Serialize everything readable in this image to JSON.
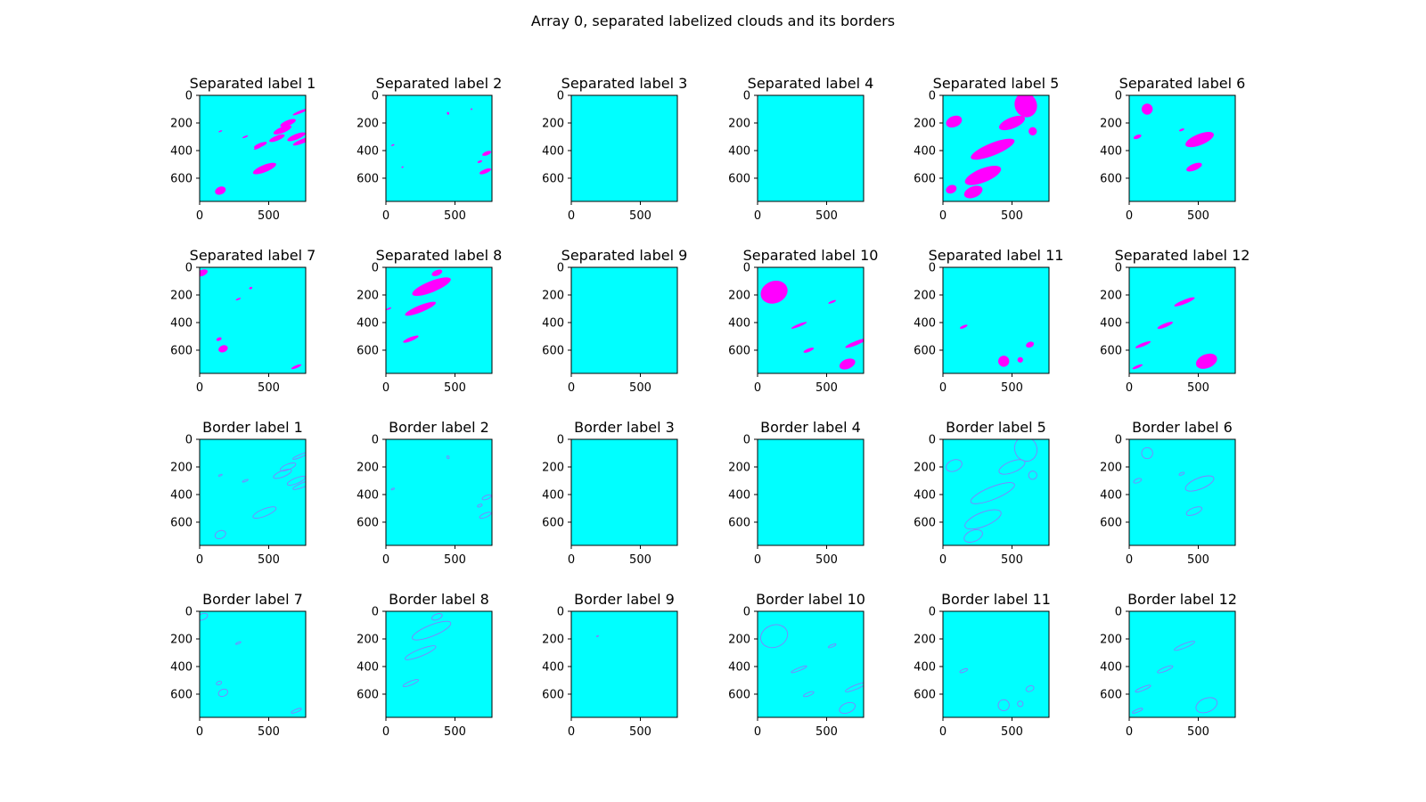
{
  "figure": {
    "suptitle": "Array 0, separated labelized clouds and its borders"
  },
  "colors": {
    "background": "#00ffff",
    "cloud": "#ff00ff",
    "border": "#8080ff",
    "frame": "#000000"
  },
  "chart_data": {
    "type": "heatmap",
    "grid": false,
    "colormap": "cool",
    "image_size": [
      768,
      768
    ],
    "xlim": [
      0,
      768
    ],
    "ylim": [
      768,
      0
    ],
    "xticks": [
      0,
      500
    ],
    "yticks": [
      0,
      200,
      400,
      600
    ],
    "panels": [
      {
        "title": "Separated label 1",
        "kind": "cloud",
        "blobs": [
          [
            150,
            260,
            14,
            5
          ],
          [
            330,
            300,
            22,
            6
          ],
          [
            420,
            380,
            30,
            7
          ],
          [
            470,
            530,
            90,
            26
          ],
          [
            440,
            360,
            50,
            15
          ],
          [
            560,
            310,
            60,
            18
          ],
          [
            600,
            250,
            70,
            22
          ],
          [
            640,
            200,
            60,
            20
          ],
          [
            700,
            300,
            70,
            20
          ],
          [
            750,
            330,
            80,
            16
          ],
          [
            730,
            120,
            60,
            10
          ],
          [
            150,
            690,
            40,
            28
          ]
        ]
      },
      {
        "title": "Separated label 2",
        "kind": "cloud",
        "blobs": [
          [
            730,
            420,
            35,
            14
          ],
          [
            720,
            550,
            45,
            15
          ],
          [
            680,
            480,
            18,
            8
          ],
          [
            450,
            130,
            8,
            10
          ],
          [
            620,
            100,
            6,
            6
          ],
          [
            50,
            360,
            12,
            5
          ],
          [
            120,
            520,
            8,
            5
          ]
        ]
      },
      {
        "title": "Separated label 3",
        "kind": "cloud",
        "blobs": []
      },
      {
        "title": "Separated label 4",
        "kind": "cloud",
        "blobs": []
      },
      {
        "title": "Separated label 5",
        "kind": "cloud",
        "blobs": [
          [
            600,
            70,
            80,
            90
          ],
          [
            500,
            200,
            100,
            40
          ],
          [
            360,
            390,
            170,
            45
          ],
          [
            290,
            580,
            140,
            50
          ],
          [
            220,
            700,
            70,
            40
          ],
          [
            80,
            190,
            60,
            40
          ],
          [
            650,
            260,
            30,
            30
          ],
          [
            60,
            680,
            40,
            30
          ]
        ]
      },
      {
        "title": "Separated label 6",
        "kind": "cloud",
        "blobs": [
          [
            510,
            320,
            110,
            40
          ],
          [
            470,
            520,
            60,
            24
          ],
          [
            130,
            100,
            40,
            40
          ],
          [
            60,
            300,
            30,
            14
          ],
          [
            380,
            250,
            20,
            8
          ]
        ]
      },
      {
        "title": "Separated label 7",
        "kind": "cloud",
        "blobs": [
          [
            20,
            40,
            40,
            22
          ],
          [
            170,
            590,
            35,
            25
          ],
          [
            140,
            520,
            20,
            12
          ],
          [
            700,
            720,
            40,
            10
          ],
          [
            280,
            230,
            20,
            6
          ],
          [
            370,
            150,
            12,
            8
          ]
        ]
      },
      {
        "title": "Separated label 8",
        "kind": "cloud",
        "blobs": [
          [
            330,
            140,
            150,
            40
          ],
          [
            250,
            300,
            120,
            25
          ],
          [
            180,
            520,
            60,
            14
          ],
          [
            20,
            300,
            20,
            6
          ],
          [
            370,
            40,
            40,
            20
          ]
        ]
      },
      {
        "title": "Separated label 9",
        "kind": "cloud",
        "blobs": []
      },
      {
        "title": "Separated label 10",
        "kind": "cloud",
        "blobs": [
          [
            120,
            180,
            100,
            80
          ],
          [
            650,
            700,
            60,
            35
          ],
          [
            710,
            550,
            80,
            15
          ],
          [
            370,
            600,
            40,
            12
          ],
          [
            300,
            420,
            60,
            10
          ],
          [
            540,
            250,
            30,
            8
          ]
        ]
      },
      {
        "title": "Separated label 11",
        "kind": "cloud",
        "blobs": [
          [
            440,
            680,
            40,
            40
          ],
          [
            630,
            560,
            30,
            20
          ],
          [
            560,
            670,
            20,
            20
          ],
          [
            150,
            430,
            30,
            10
          ]
        ]
      },
      {
        "title": "Separated label 12",
        "kind": "cloud",
        "blobs": [
          [
            560,
            680,
            80,
            50
          ],
          [
            400,
            250,
            80,
            15
          ],
          [
            260,
            420,
            60,
            14
          ],
          [
            100,
            560,
            60,
            12
          ],
          [
            60,
            720,
            40,
            10
          ]
        ]
      },
      {
        "title": "Border label 1",
        "kind": "border",
        "blobs": [
          [
            470,
            530,
            90,
            26
          ],
          [
            600,
            250,
            70,
            22
          ],
          [
            640,
            200,
            60,
            20
          ],
          [
            700,
            300,
            70,
            20
          ],
          [
            750,
            330,
            80,
            16
          ],
          [
            730,
            120,
            60,
            10
          ],
          [
            150,
            690,
            40,
            28
          ],
          [
            330,
            300,
            22,
            6
          ],
          [
            150,
            260,
            14,
            5
          ]
        ]
      },
      {
        "title": "Border label 2",
        "kind": "border",
        "blobs": [
          [
            730,
            420,
            35,
            14
          ],
          [
            720,
            550,
            45,
            15
          ],
          [
            680,
            480,
            18,
            8
          ],
          [
            450,
            130,
            8,
            10
          ],
          [
            50,
            360,
            12,
            5
          ]
        ]
      },
      {
        "title": "Border label 3",
        "kind": "border",
        "blobs": []
      },
      {
        "title": "Border label 4",
        "kind": "border",
        "blobs": []
      },
      {
        "title": "Border label 5",
        "kind": "border",
        "blobs": [
          [
            600,
            70,
            80,
            90
          ],
          [
            500,
            200,
            100,
            40
          ],
          [
            360,
            390,
            170,
            45
          ],
          [
            290,
            580,
            140,
            50
          ],
          [
            220,
            700,
            70,
            40
          ],
          [
            80,
            190,
            60,
            40
          ],
          [
            650,
            260,
            30,
            30
          ]
        ]
      },
      {
        "title": "Border label 6",
        "kind": "border",
        "blobs": [
          [
            510,
            320,
            110,
            40
          ],
          [
            470,
            520,
            60,
            24
          ],
          [
            130,
            100,
            40,
            40
          ],
          [
            60,
            300,
            30,
            14
          ],
          [
            380,
            250,
            20,
            8
          ]
        ]
      },
      {
        "title": "Border label 7",
        "kind": "border",
        "blobs": [
          [
            20,
            40,
            40,
            22
          ],
          [
            170,
            590,
            35,
            25
          ],
          [
            140,
            520,
            20,
            12
          ],
          [
            700,
            720,
            40,
            10
          ],
          [
            280,
            230,
            20,
            6
          ]
        ]
      },
      {
        "title": "Border label 8",
        "kind": "border",
        "blobs": [
          [
            330,
            140,
            150,
            40
          ],
          [
            250,
            300,
            120,
            25
          ],
          [
            180,
            520,
            60,
            14
          ],
          [
            370,
            40,
            40,
            20
          ]
        ]
      },
      {
        "title": "Border label 9",
        "kind": "border",
        "blobs": [
          [
            190,
            180,
            8,
            3
          ]
        ]
      },
      {
        "title": "Border label 10",
        "kind": "border",
        "blobs": [
          [
            120,
            180,
            100,
            80
          ],
          [
            650,
            700,
            60,
            35
          ],
          [
            710,
            550,
            80,
            15
          ],
          [
            370,
            600,
            40,
            12
          ],
          [
            300,
            420,
            60,
            10
          ],
          [
            540,
            250,
            30,
            8
          ]
        ]
      },
      {
        "title": "Border label 11",
        "kind": "border",
        "blobs": [
          [
            440,
            680,
            40,
            40
          ],
          [
            630,
            560,
            30,
            20
          ],
          [
            560,
            670,
            20,
            20
          ],
          [
            150,
            430,
            30,
            10
          ]
        ]
      },
      {
        "title": "Border label 12",
        "kind": "border",
        "blobs": [
          [
            560,
            680,
            80,
            50
          ],
          [
            400,
            250,
            80,
            15
          ],
          [
            260,
            420,
            60,
            14
          ],
          [
            100,
            560,
            60,
            12
          ],
          [
            60,
            720,
            40,
            10
          ]
        ]
      }
    ]
  }
}
